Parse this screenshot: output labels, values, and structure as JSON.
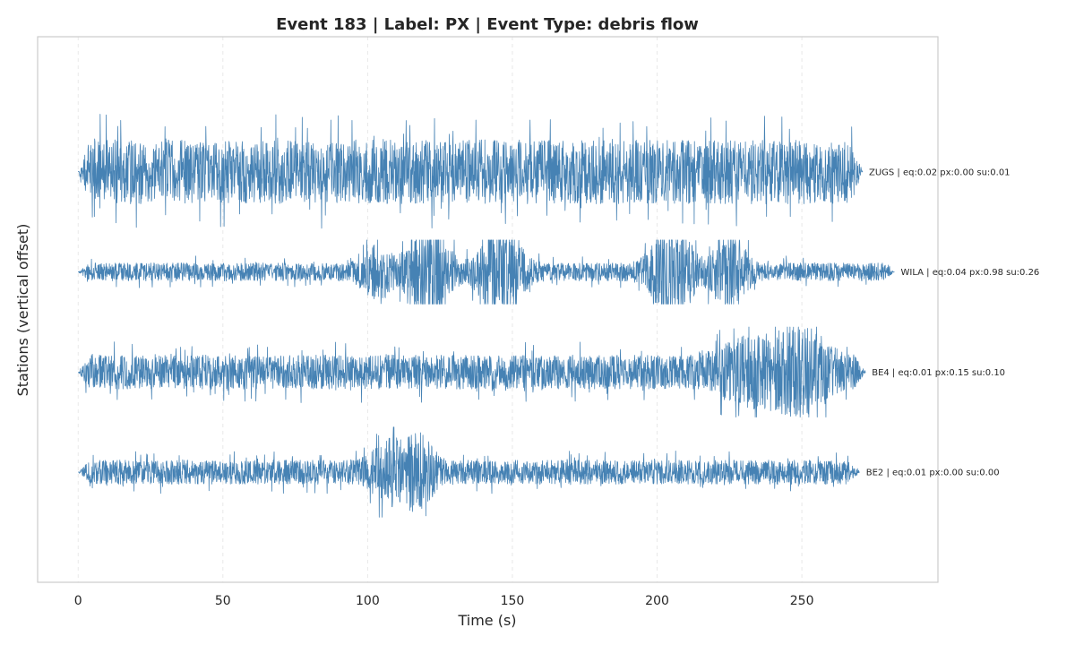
{
  "chart_data": {
    "type": "line",
    "title": "Event 183 | Label: PX | Event Type: debris flow",
    "xlabel": "Time (s)",
    "ylabel": "Stations (vertical offset)",
    "xlim": [
      -14,
      297
    ],
    "ylim": [
      -4.1,
      1.35
    ],
    "xticks": [
      0,
      50,
      100,
      150,
      200,
      250
    ],
    "xtick_labels": [
      "0",
      "50",
      "100",
      "150",
      "200",
      "250"
    ],
    "grid": true,
    "color": "#4682b4",
    "series": [
      {
        "name": "ZUGS",
        "label": "ZUGS | eq:0.02 px:0.00 su:0.01",
        "offset": 0,
        "start": 0,
        "end": 271,
        "base_amplitude": 0.32,
        "peak_amplitude": 0.72,
        "bursts": []
      },
      {
        "name": "WILA",
        "label": "WILA | eq:0.04 px:0.98 su:0.26",
        "offset": -1,
        "start": 0,
        "end": 282,
        "base_amplitude": 0.09,
        "peak_amplitude": 0.32,
        "bursts": [
          {
            "t": 103,
            "w": 4,
            "a": 0.22
          },
          {
            "t": 121,
            "w": 5,
            "a": 0.5
          },
          {
            "t": 146,
            "w": 5,
            "a": 0.5
          },
          {
            "t": 205,
            "w": 5,
            "a": 0.48
          },
          {
            "t": 225,
            "w": 4,
            "a": 0.38
          }
        ]
      },
      {
        "name": "BE4",
        "label": "BE4 | eq:0.01 px:0.15 su:0.10",
        "offset": -2,
        "start": 0,
        "end": 272,
        "base_amplitude": 0.17,
        "peak_amplitude": 0.45,
        "bursts": [
          {
            "t": 232,
            "w": 8,
            "a": 0.2
          },
          {
            "t": 250,
            "w": 7,
            "a": 0.3
          }
        ]
      },
      {
        "name": "BE2",
        "label": "BE2 | eq:0.01 px:0.00 su:0.00",
        "offset": -3,
        "start": 0,
        "end": 270,
        "base_amplitude": 0.12,
        "peak_amplitude": 0.45,
        "bursts": [
          {
            "t": 108,
            "w": 5,
            "a": 0.22
          },
          {
            "t": 118,
            "w": 4,
            "a": 0.25
          }
        ]
      }
    ]
  }
}
